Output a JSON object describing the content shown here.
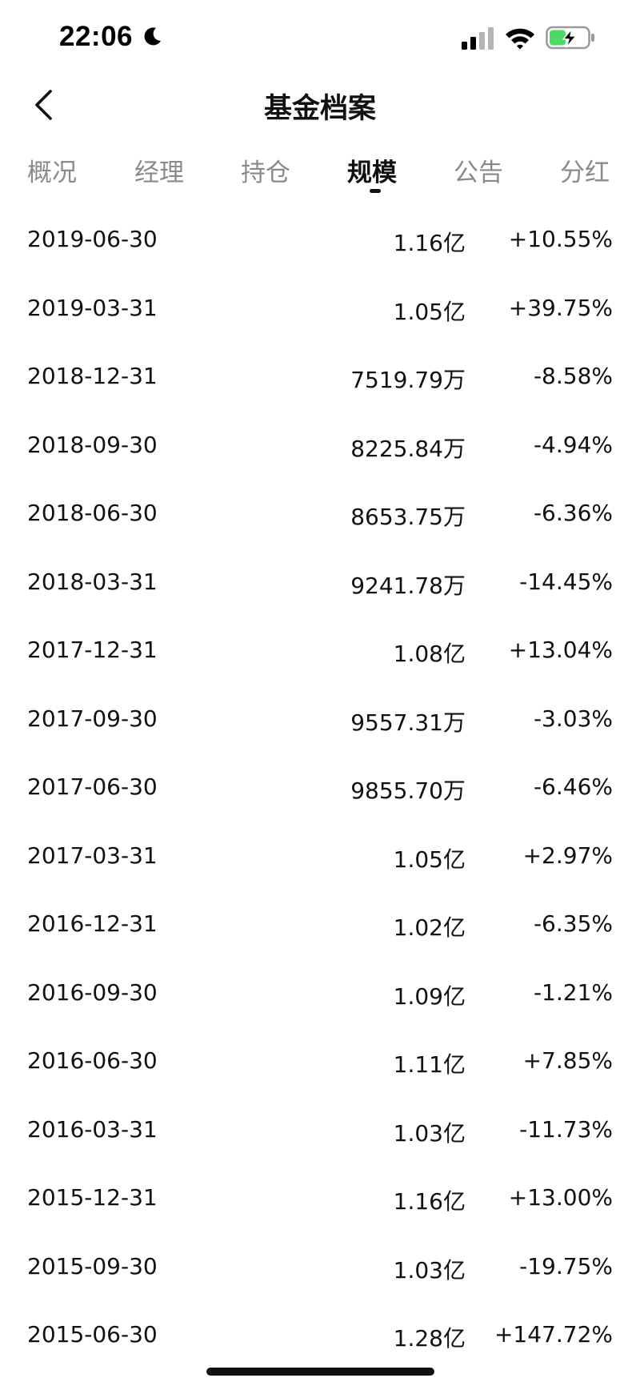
{
  "status_bar": {
    "time": "22:06",
    "icons": [
      "moon-icon",
      "signal-icon",
      "wifi-icon",
      "battery-charging-icon"
    ],
    "battery_color": "#4cd964"
  },
  "nav": {
    "title": "基金档案",
    "back_icon": "chevron-left-icon"
  },
  "tabs": [
    {
      "label": "概况",
      "active": false
    },
    {
      "label": "经理",
      "active": false
    },
    {
      "label": "持仓",
      "active": false
    },
    {
      "label": "规模",
      "active": true
    },
    {
      "label": "公告",
      "active": false
    },
    {
      "label": "分红",
      "active": false
    }
  ],
  "rows": [
    {
      "date": "2019-06-30",
      "size": "1.16亿",
      "change": "+10.55%"
    },
    {
      "date": "2019-03-31",
      "size": "1.05亿",
      "change": "+39.75%"
    },
    {
      "date": "2018-12-31",
      "size": "7519.79万",
      "change": "-8.58%"
    },
    {
      "date": "2018-09-30",
      "size": "8225.84万",
      "change": "-4.94%"
    },
    {
      "date": "2018-06-30",
      "size": "8653.75万",
      "change": "-6.36%"
    },
    {
      "date": "2018-03-31",
      "size": "9241.78万",
      "change": "-14.45%"
    },
    {
      "date": "2017-12-31",
      "size": "1.08亿",
      "change": "+13.04%"
    },
    {
      "date": "2017-09-30",
      "size": "9557.31万",
      "change": "-3.03%"
    },
    {
      "date": "2017-06-30",
      "size": "9855.70万",
      "change": "-6.46%"
    },
    {
      "date": "2017-03-31",
      "size": "1.05亿",
      "change": "+2.97%"
    },
    {
      "date": "2016-12-31",
      "size": "1.02亿",
      "change": "-6.35%"
    },
    {
      "date": "2016-09-30",
      "size": "1.09亿",
      "change": "-1.21%"
    },
    {
      "date": "2016-06-30",
      "size": "1.11亿",
      "change": "+7.85%"
    },
    {
      "date": "2016-03-31",
      "size": "1.03亿",
      "change": "-11.73%"
    },
    {
      "date": "2015-12-31",
      "size": "1.16亿",
      "change": "+13.00%"
    },
    {
      "date": "2015-09-30",
      "size": "1.03亿",
      "change": "-19.75%"
    },
    {
      "date": "2015-06-30",
      "size": "1.28亿",
      "change": "+147.72%"
    }
  ]
}
